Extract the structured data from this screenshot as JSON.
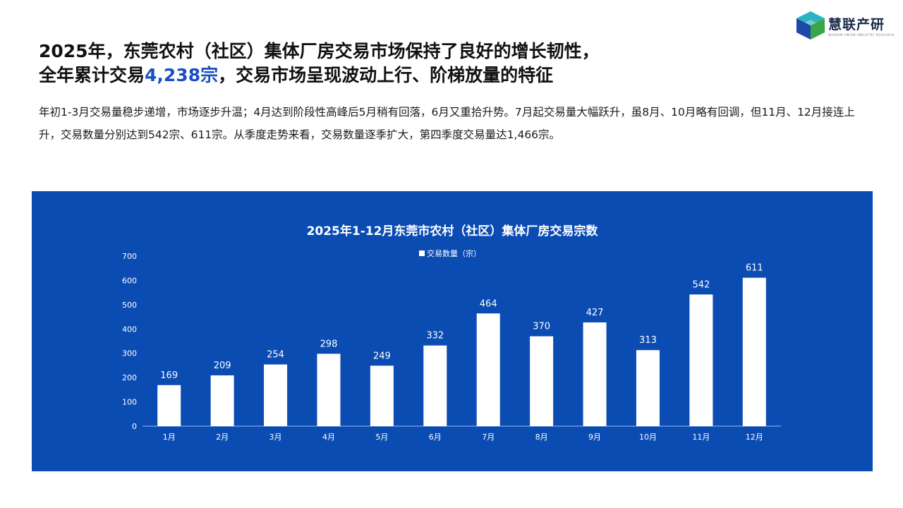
{
  "logo": {
    "name": "慧联产研",
    "subtitle": "WISDOM UNION INDUSTRY RESEARCH",
    "icon": "cube-logo-icon"
  },
  "headline": {
    "line1": "2025年，东莞农村（社区）集体厂房交易市场保持了良好的增长韧性，",
    "line2_prefix": "全年累计交易",
    "line2_highlight": "4,238宗",
    "line2_suffix": "，交易市场呈现波动上行、阶梯放量的特征"
  },
  "summary": "年初1-3月交易量稳步递增，市场逐步升温；4月达到阶段性高峰后5月稍有回落，6月又重拾升势。7月起交易量大幅跃升，虽8月、10月略有回调，但11月、12月接连上升，交易数量分别达到542宗、611宗。从季度走势来看，交易数量逐季扩大，第四季度交易量达1,466宗。",
  "colors": {
    "panel": "#0b4cb3",
    "bar": "#ffffff",
    "highlight": "#1a4fc4"
  },
  "chart_data": {
    "type": "bar",
    "title": "2025年1-12月东莞市农村（社区）集体厂房交易宗数",
    "categories": [
      "1月",
      "2月",
      "3月",
      "4月",
      "5月",
      "6月",
      "7月",
      "8月",
      "9月",
      "10月",
      "11月",
      "12月"
    ],
    "series": [
      {
        "name": "交易数量（宗）",
        "values": [
          169,
          209,
          254,
          298,
          249,
          332,
          464,
          370,
          427,
          313,
          542,
          611
        ]
      }
    ],
    "ylim": [
      0,
      700
    ],
    "yticks": [
      0,
      100,
      200,
      300,
      400,
      500,
      600,
      700
    ],
    "legend": "top-center",
    "grid": false,
    "data_labels": true
  }
}
